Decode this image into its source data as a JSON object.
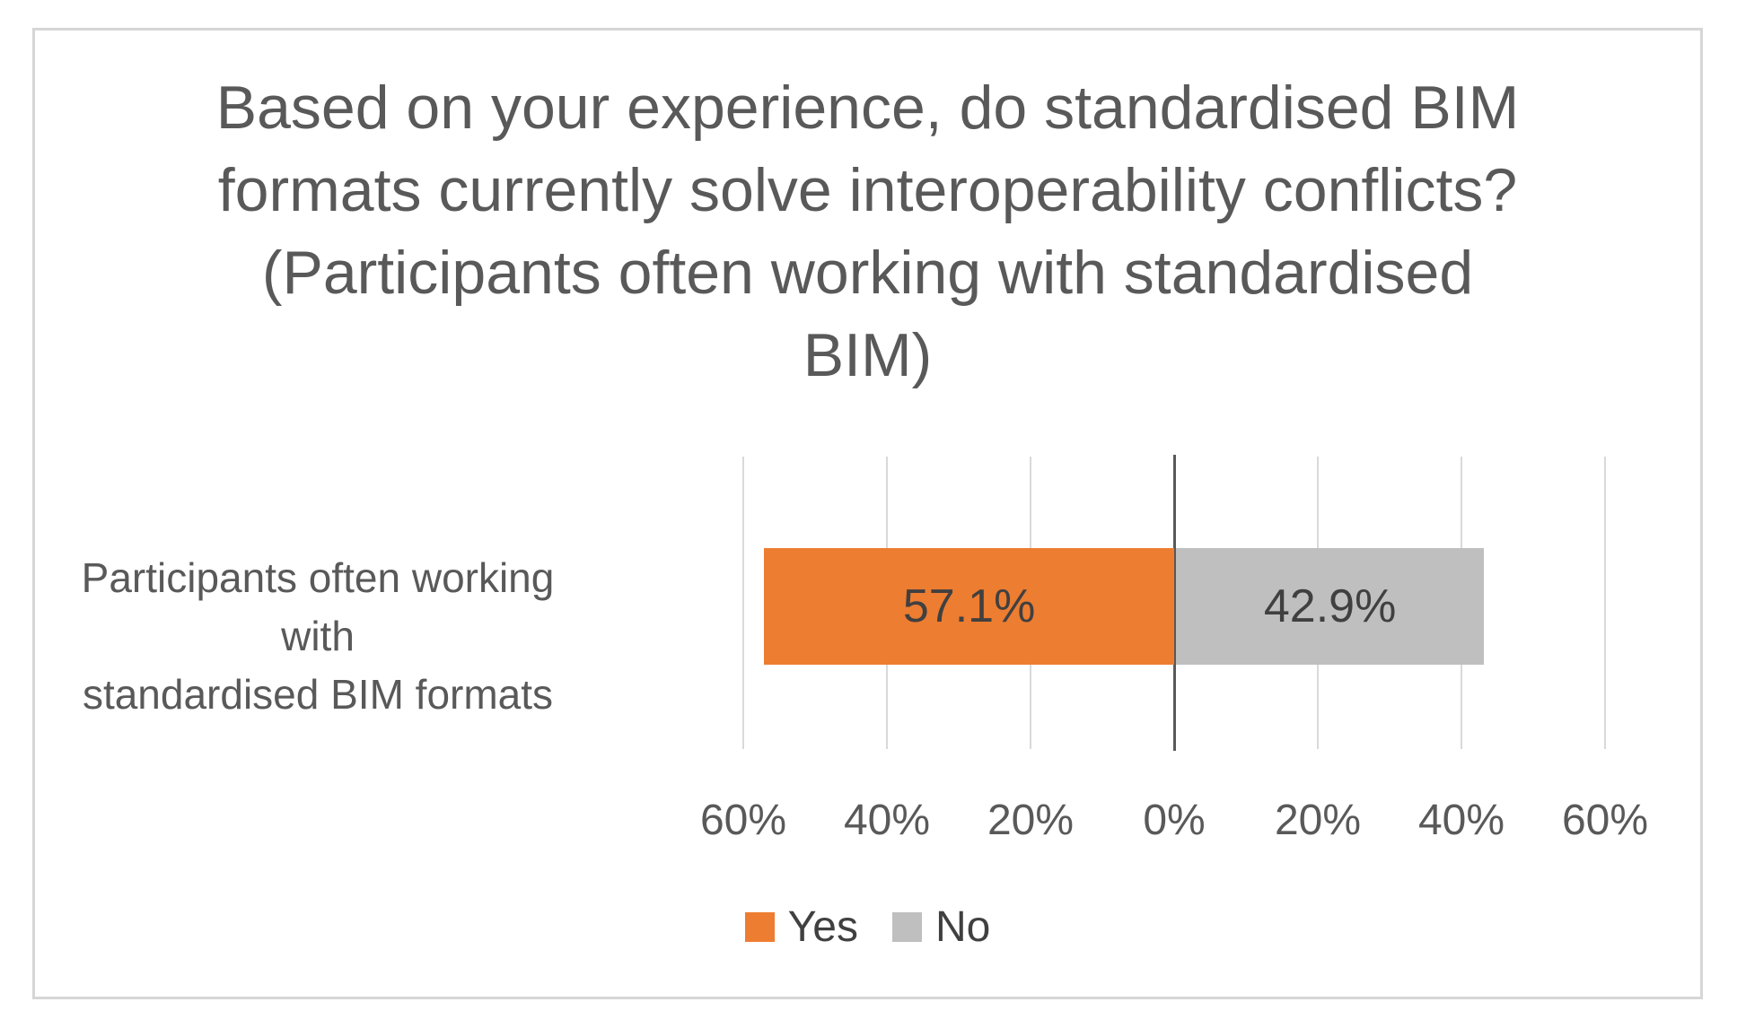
{
  "chart_data": {
    "type": "bar",
    "subtype": "diverging-horizontal",
    "title": "Based on your experience, do standardised BIM formats currently solve interoperability conflicts? (Participants often working with standardised BIM)",
    "title_lines": [
      "Based on your experience, do standardised BIM",
      "formats currently solve interoperability conflicts?",
      "(Participants often working with standardised",
      "BIM)"
    ],
    "categories": [
      "Participants often working with standardised BIM formats"
    ],
    "category_label_lines": [
      "Participants often working with",
      "standardised BIM formats"
    ],
    "series": [
      {
        "name": "Yes",
        "values": [
          57.1
        ],
        "direction": "left",
        "color": "#ed7d31",
        "data_labels": [
          "57.1%"
        ]
      },
      {
        "name": "No",
        "values": [
          42.9
        ],
        "direction": "right",
        "color": "#bfbfbf",
        "data_labels": [
          "42.9%"
        ]
      }
    ],
    "x_ticks": [
      "60%",
      "40%",
      "20%",
      "0%",
      "20%",
      "40%",
      "60%"
    ],
    "x_tick_values": [
      -60,
      -40,
      -20,
      0,
      20,
      40,
      60
    ],
    "axis_range_percent": [
      -60,
      60
    ],
    "grid": true,
    "legend_position": "bottom",
    "legend": [
      {
        "label": "Yes",
        "color": "#ed7d31"
      },
      {
        "label": "No",
        "color": "#bfbfbf"
      }
    ]
  },
  "colors": {
    "yes_bar": "#ed7d31",
    "no_bar": "#bfbfbf",
    "title_text": "#595959",
    "axis_text": "#595959",
    "data_label_text": "#404040",
    "gridline": "#d9d9d9",
    "zero_axis": "#595959",
    "frame_border": "#d6d6d6",
    "background": "#ffffff"
  }
}
